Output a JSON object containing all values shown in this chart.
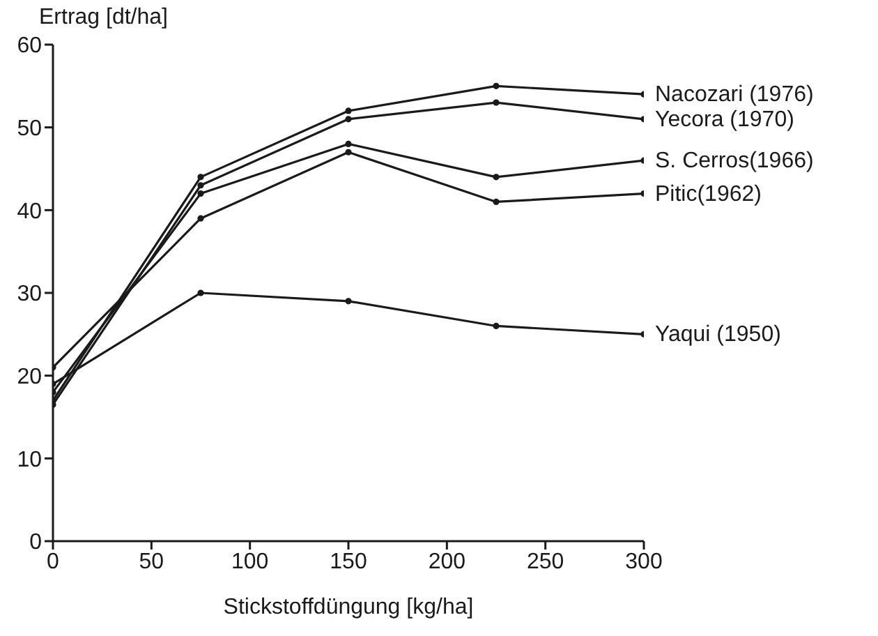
{
  "chart_data": {
    "type": "line",
    "xlabel": "Stickstoffdüngung [kg/ha]",
    "ylabel": "Ertrag [dt/ha]",
    "x": [
      0,
      75,
      150,
      225,
      300
    ],
    "xlim": [
      0,
      300
    ],
    "xticks": [
      0,
      50,
      100,
      150,
      200,
      250,
      300
    ],
    "ylim": [
      0,
      60
    ],
    "yticks": [
      0,
      10,
      20,
      30,
      40,
      50,
      60
    ],
    "grid": false,
    "marker": "circle",
    "line_style": "solid",
    "series": [
      {
        "name": "Nacozari (1976)",
        "color": "#1a1a1a",
        "values": [
          17,
          44,
          52,
          55,
          54
        ]
      },
      {
        "name": "Yecora (1970)",
        "color": "#1a1a1a",
        "values": [
          16.5,
          43,
          51,
          53,
          51
        ]
      },
      {
        "name": "S. Cerros(1966)",
        "color": "#1a1a1a",
        "values": [
          18,
          42,
          48,
          44,
          46
        ]
      },
      {
        "name": "Pitic(1962)",
        "color": "#1a1a1a",
        "values": [
          21,
          39,
          47,
          41,
          42
        ]
      },
      {
        "name": "Yaqui (1950)",
        "color": "#1a1a1a",
        "values": [
          19,
          30,
          29,
          26,
          25
        ]
      }
    ]
  }
}
